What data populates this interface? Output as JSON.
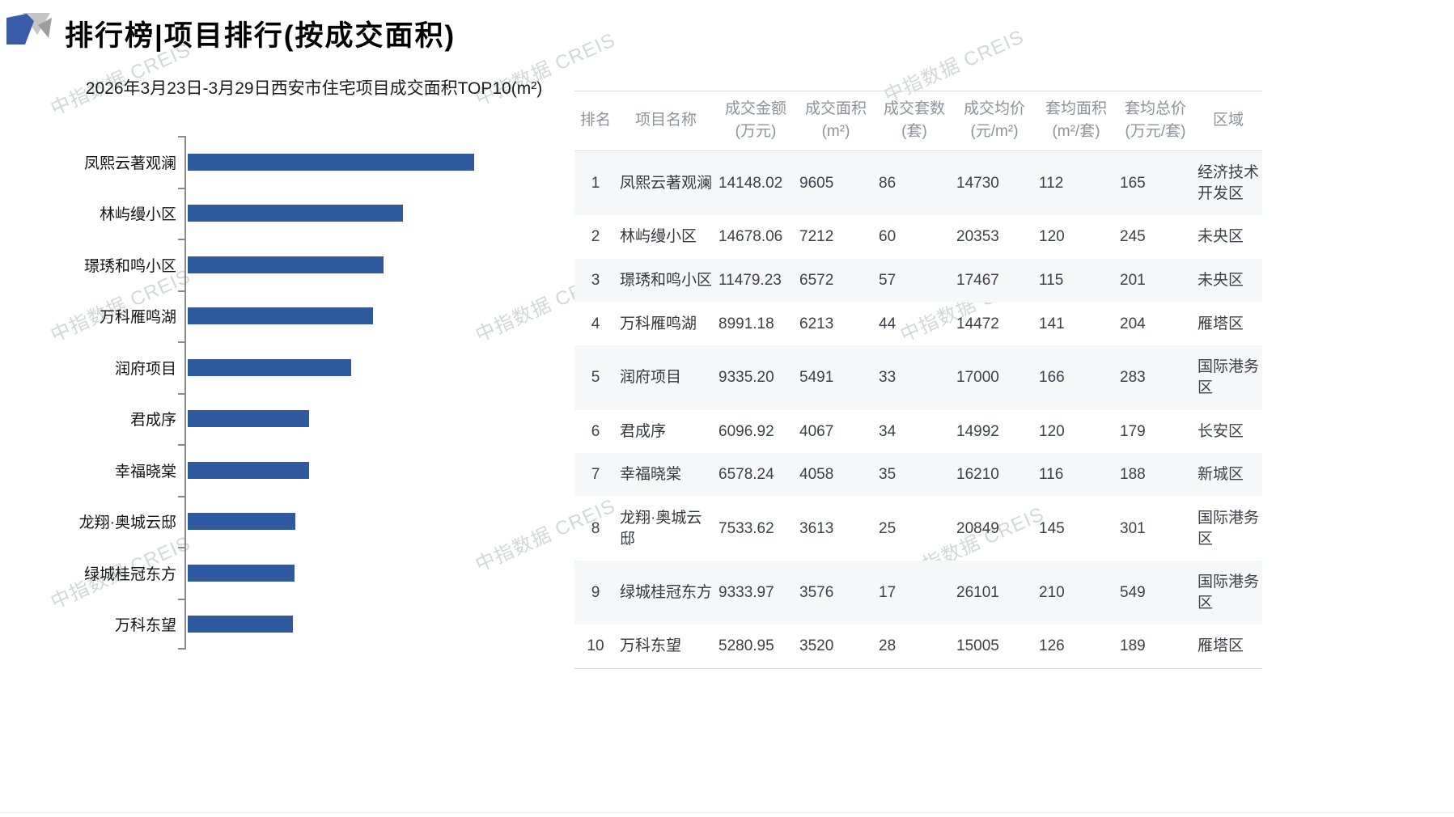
{
  "header": {
    "title": "排行榜|项目排行(按成交面积)"
  },
  "watermark": {
    "text": "中指数据 CREIS"
  },
  "chart_data": {
    "type": "bar",
    "orientation": "horizontal",
    "title": "2026年3月23日-3月29日西安市住宅项目成交面积TOP10(m²)",
    "categories": [
      "凤熙云著观澜",
      "林屿缦小区",
      "璟琇和鸣小区",
      "万科雁鸣湖",
      "润府项目",
      "君成序",
      "幸福晓棠",
      "龙翔·奥城云邸",
      "绿城桂冠东方",
      "万科东望"
    ],
    "values": [
      9605,
      7212,
      6572,
      6213,
      5491,
      4067,
      4058,
      3613,
      3576,
      3520
    ],
    "xlabel": "",
    "ylabel": "",
    "xlim": [
      0,
      9605
    ],
    "grid": false,
    "legend": "none",
    "bar_color": "#2F5AA0",
    "axis_color": "#8a8a8a"
  },
  "table": {
    "columns": [
      "排名",
      "项目名称",
      "成交金额\n(万元)",
      "成交面积\n(m²)",
      "成交套数\n(套)",
      "成交均价\n(元/m²)",
      "套均面积\n(m²/套)",
      "套均总价\n(万元/套)",
      "区域"
    ],
    "rows": [
      [
        "1",
        "凤熙云著观澜",
        "14148.02",
        "9605",
        "86",
        "14730",
        "112",
        "165",
        "经济技术开发区"
      ],
      [
        "2",
        "林屿缦小区",
        "14678.06",
        "7212",
        "60",
        "20353",
        "120",
        "245",
        "未央区"
      ],
      [
        "3",
        "璟琇和鸣小区",
        "11479.23",
        "6572",
        "57",
        "17467",
        "115",
        "201",
        "未央区"
      ],
      [
        "4",
        "万科雁鸣湖",
        "8991.18",
        "6213",
        "44",
        "14472",
        "141",
        "204",
        "雁塔区"
      ],
      [
        "5",
        "润府项目",
        "9335.20",
        "5491",
        "33",
        "17000",
        "166",
        "283",
        "国际港务区"
      ],
      [
        "6",
        "君成序",
        "6096.92",
        "4067",
        "34",
        "14992",
        "120",
        "179",
        "长安区"
      ],
      [
        "7",
        "幸福晓棠",
        "6578.24",
        "4058",
        "35",
        "16210",
        "116",
        "188",
        "新城区"
      ],
      [
        "8",
        "龙翔·奥城云邸",
        "7533.62",
        "3613",
        "25",
        "20849",
        "145",
        "301",
        "国际港务区"
      ],
      [
        "9",
        "绿城桂冠东方",
        "9333.97",
        "3576",
        "17",
        "26101",
        "210",
        "549",
        "国际港务区"
      ],
      [
        "10",
        "万科东望",
        "5280.95",
        "3520",
        "28",
        "15005",
        "126",
        "189",
        "雁塔区"
      ]
    ]
  }
}
